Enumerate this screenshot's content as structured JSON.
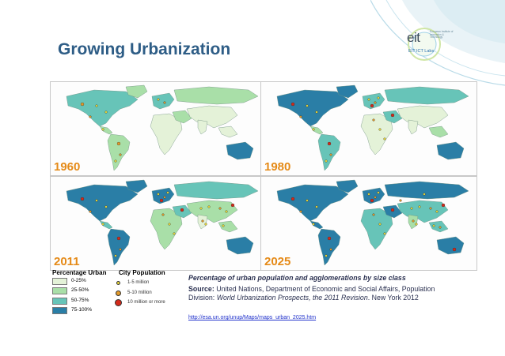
{
  "slide": {
    "title": "Growing Urbanization"
  },
  "logo": {
    "name": "eit",
    "small_text": "European Institute of Innovation & Technology",
    "sub": "EIT ICT Labs"
  },
  "maps": [
    {
      "year": "1960"
    },
    {
      "year": "1980"
    },
    {
      "year": "2011"
    },
    {
      "year": "2025"
    }
  ],
  "legend": {
    "percentage_title": "Percentage Urban",
    "percentage_classes": [
      {
        "label": "0-25%",
        "color": "#e4f2d8"
      },
      {
        "label": "25-50%",
        "color": "#a9dfa8"
      },
      {
        "label": "50-75%",
        "color": "#67c4b8"
      },
      {
        "label": "75-100%",
        "color": "#2a7ea6"
      }
    ],
    "city_title": "City Population",
    "city_classes": [
      {
        "label": "1-5 million",
        "color": "#e8d63a"
      },
      {
        "label": "5-10 million",
        "color": "#e39a2a"
      },
      {
        "label": "10 million or more",
        "color": "#d42a1a"
      }
    ]
  },
  "caption": "Percentage of urban population and agglomerations by size class",
  "source": {
    "label": "Source:",
    "text1": "United Nations, Department of Economic and Social Affairs, Population Division:",
    "title": "World Urbanization Prospects, the 2011 Revision",
    "text2": ". New York 2012"
  },
  "link": "http://esa.un.org/unup/Maps/maps_urban_2025.htm",
  "colors": {
    "title": "#2e5d86",
    "year": "#e58a17",
    "ocean": "#fdfdfd"
  }
}
